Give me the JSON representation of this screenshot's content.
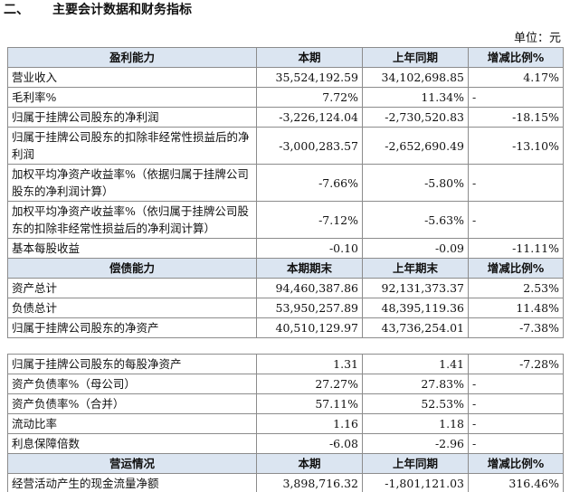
{
  "header": {
    "section_number": "二、",
    "title": "主要会计数据和财务指标",
    "unit": "单位：元"
  },
  "tables": [
    {
      "sections": [
        {
          "header": [
            "盈利能力",
            "本期",
            "上年同期",
            "增减比例%"
          ],
          "rows": [
            [
              "营业收入",
              "35,524,192.59",
              "34,102,698.85",
              "4.17%"
            ],
            [
              "毛利率%",
              "7.72%",
              "11.34%",
              "-"
            ],
            [
              "归属于挂牌公司股东的净利润",
              "-3,226,124.04",
              "-2,730,520.83",
              "-18.15%"
            ],
            [
              "归属于挂牌公司股东的扣除非经常性损益后的净利润",
              "-3,000,283.57",
              "-2,652,690.49",
              "-13.10%"
            ],
            [
              "加权平均净资产收益率%（依据归属于挂牌公司股东的净利润计算）",
              "-7.66%",
              "-5.80%",
              "-"
            ],
            [
              "加权平均净资产收益率%（依归属于挂牌公司股东的扣除非经常性损益后的净利润计算）",
              "-7.12%",
              "-5.63%",
              "-"
            ],
            [
              "基本每股收益",
              "-0.10",
              "-0.09",
              "-11.11%"
            ]
          ]
        },
        {
          "header": [
            "偿债能力",
            "本期期末",
            "上年期末",
            "增减比例%"
          ],
          "rows": [
            [
              "资产总计",
              "94,460,387.86",
              "92,131,373.37",
              "2.53%"
            ],
            [
              "负债总计",
              "53,950,257.89",
              "48,395,119.36",
              "11.48%"
            ],
            [
              "归属于挂牌公司股东的净资产",
              "40,510,129.97",
              "43,736,254.01",
              "-7.38%"
            ]
          ]
        }
      ]
    },
    {
      "sections": [
        {
          "rows": [
            [
              "归属于挂牌公司股东的每股净资产",
              "1.31",
              "1.41",
              "-7.28%"
            ],
            [
              "资产负债率%（母公司）",
              "27.27%",
              "27.83%",
              "-"
            ],
            [
              "资产负债率%（合并）",
              "57.11%",
              "52.53%",
              "-"
            ],
            [
              "流动比率",
              "1.16",
              "1.18",
              "-"
            ],
            [
              "利息保障倍数",
              "-6.08",
              "-2.96",
              "-"
            ]
          ]
        },
        {
          "header": [
            "营运情况",
            "本期",
            "上年同期",
            "增减比例%"
          ],
          "rows": [
            [
              "经营活动产生的现金流量净额",
              "3,898,716.32",
              "-1,801,121.03",
              "316.46%"
            ]
          ]
        }
      ]
    }
  ]
}
